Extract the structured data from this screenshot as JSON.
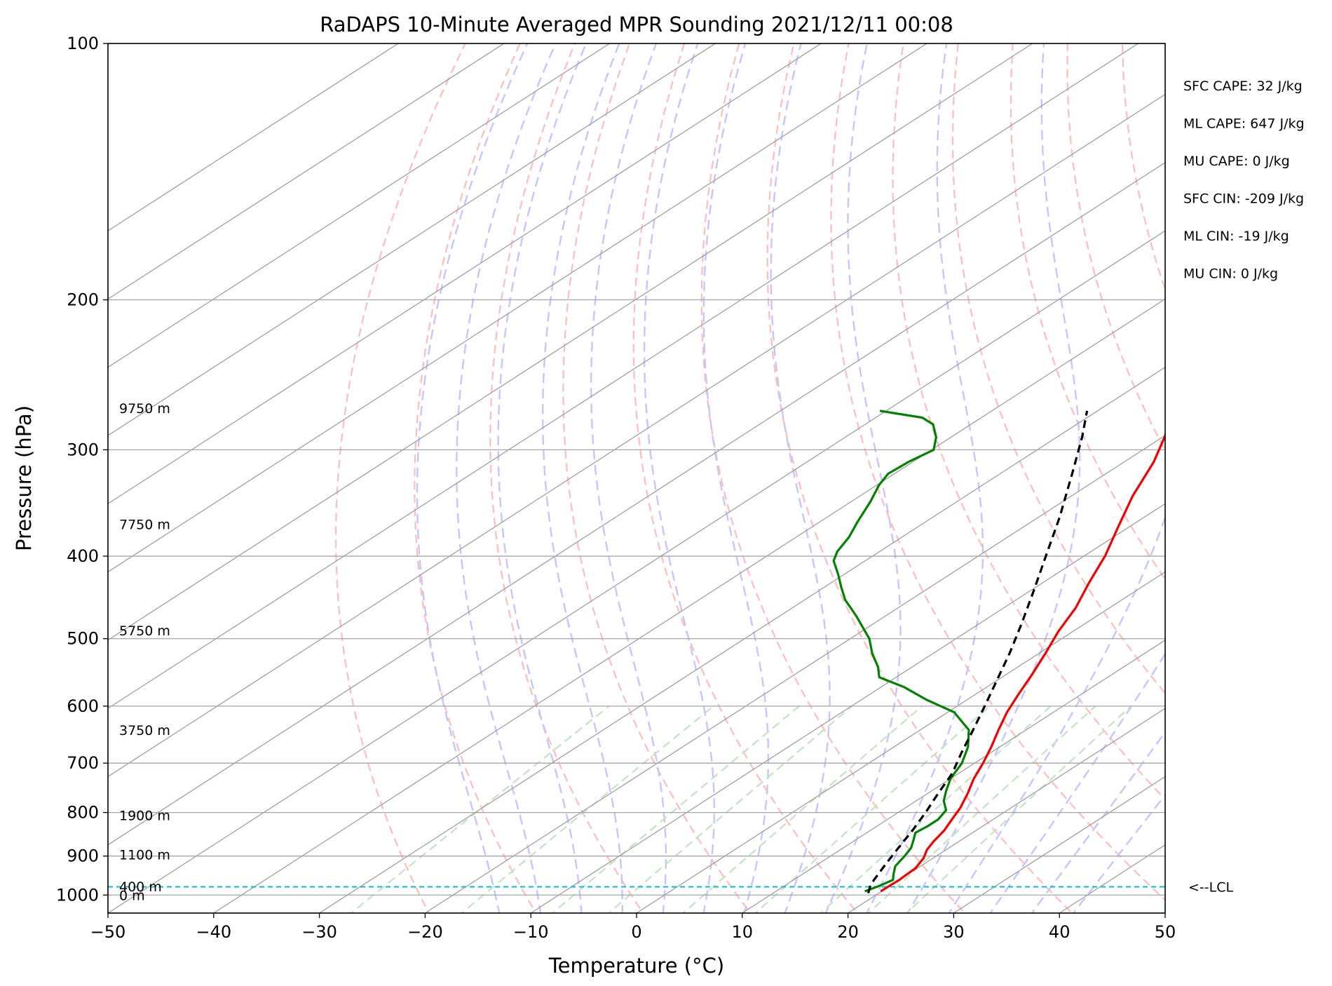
{
  "chart_data": {
    "type": "skew-t",
    "title": "RaDAPS 10-Minute Averaged MPR Sounding 2021/12/11 00:08",
    "xlabel": "Temperature (°C)",
    "ylabel": "Pressure (hPa)",
    "xlim": [
      -50,
      50
    ],
    "ylim": [
      1050,
      100
    ],
    "y_scale": "log",
    "x_ticks": [
      "−50",
      "−40",
      "−30",
      "−20",
      "−10",
      "0",
      "10",
      "20",
      "30",
      "40",
      "50"
    ],
    "y_ticks": [
      "100",
      "200",
      "300",
      "400",
      "500",
      "600",
      "700",
      "800",
      "900",
      "1000"
    ],
    "grid": true,
    "temperature": {
      "color": "#ee0000",
      "points": [
        [
          990,
          19.9
        ],
        [
          960,
          20.0
        ],
        [
          930,
          19.8
        ],
        [
          905,
          19.1
        ],
        [
          885,
          18.2
        ],
        [
          865,
          17.6
        ],
        [
          840,
          17.0
        ],
        [
          815,
          16.1
        ],
        [
          790,
          15.2
        ],
        [
          760,
          13.8
        ],
        [
          730,
          12.2
        ],
        [
          700,
          10.8
        ],
        [
          670,
          9.2
        ],
        [
          640,
          7.4
        ],
        [
          610,
          5.6
        ],
        [
          580,
          4.0
        ],
        [
          550,
          2.4
        ],
        [
          520,
          0.6
        ],
        [
          490,
          -1.4
        ],
        [
          460,
          -3.2
        ],
        [
          430,
          -5.6
        ],
        [
          400,
          -8.0
        ],
        [
          370,
          -11.0
        ],
        [
          340,
          -14.2
        ],
        [
          310,
          -17.2
        ],
        [
          290,
          -19.8
        ],
        [
          270,
          -22.8
        ]
      ]
    },
    "dewpoint": {
      "color": "#008000",
      "points": [
        [
          990,
          18.4
        ],
        [
          975,
          19.0
        ],
        [
          960,
          19.4
        ],
        [
          945,
          18.6
        ],
        [
          925,
          17.6
        ],
        [
          900,
          17.0
        ],
        [
          880,
          16.4
        ],
        [
          860,
          15.4
        ],
        [
          845,
          14.6
        ],
        [
          830,
          14.8
        ],
        [
          815,
          14.8
        ],
        [
          795,
          14.2
        ],
        [
          775,
          12.6
        ],
        [
          755,
          11.4
        ],
        [
          730,
          10.0
        ],
        [
          700,
          8.8
        ],
        [
          670,
          7.0
        ],
        [
          640,
          4.6
        ],
        [
          610,
          0.6
        ],
        [
          590,
          -3.8
        ],
        [
          570,
          -7.8
        ],
        [
          555,
          -11.6
        ],
        [
          540,
          -13.2
        ],
        [
          520,
          -15.8
        ],
        [
          500,
          -18.2
        ],
        [
          470,
          -22.8
        ],
        [
          450,
          -26.2
        ],
        [
          435,
          -28.4
        ],
        [
          420,
          -30.6
        ],
        [
          405,
          -33.0
        ],
        [
          395,
          -34.0
        ],
        [
          380,
          -35.0
        ],
        [
          365,
          -36.4
        ],
        [
          345,
          -38.2
        ],
        [
          330,
          -39.8
        ],
        [
          320,
          -40.6
        ],
        [
          310,
          -40.4
        ],
        [
          300,
          -39.8
        ],
        [
          290,
          -41.4
        ],
        [
          280,
          -43.6
        ],
        [
          275,
          -45.6
        ],
        [
          270,
          -50.6
        ]
      ]
    },
    "parcel": {
      "color": "#000000",
      "points": [
        [
          995,
          19.0
        ],
        [
          975,
          18.1
        ],
        [
          960,
          17.6
        ],
        [
          920,
          16.4
        ],
        [
          880,
          15.2
        ],
        [
          840,
          14.0
        ],
        [
          800,
          12.6
        ],
        [
          760,
          11.0
        ],
        [
          720,
          9.4
        ],
        [
          680,
          7.2
        ],
        [
          640,
          5.0
        ],
        [
          600,
          2.6
        ],
        [
          560,
          0.0
        ],
        [
          520,
          -2.8
        ],
        [
          480,
          -6.0
        ],
        [
          440,
          -9.6
        ],
        [
          400,
          -13.6
        ],
        [
          360,
          -18.0
        ],
        [
          320,
          -23.2
        ],
        [
          290,
          -27.6
        ],
        [
          270,
          -31.0
        ]
      ]
    },
    "lcl_pressure": 978,
    "lcl_label": "<--LCL",
    "height_labels": [
      {
        "p": 268,
        "text": "9750 m"
      },
      {
        "p": 367,
        "text": "7750 m"
      },
      {
        "p": 489,
        "text": "5750 m"
      },
      {
        "p": 640,
        "text": "3750 m"
      },
      {
        "p": 806,
        "text": "1900 m"
      },
      {
        "p": 896,
        "text": "1100 m"
      },
      {
        "p": 977,
        "text": "400 m"
      },
      {
        "p": 1000,
        "text": "0 m"
      }
    ],
    "stats": [
      "SFC CAPE: 32 J/kg",
      "ML CAPE: 647 J/kg",
      "MU CAPE: 0 J/kg",
      "SFC CIN: -209 J/kg",
      "ML CIN: -19 J/kg",
      "MU CIN: 0 J/kg"
    ],
    "background_lines": {
      "isotherm_color": "#a0a0a0",
      "dry_adiabat_color": "#ffbdbd",
      "moist_adiabat_color": "#c6c6ff",
      "mixing_ratio_color": "#c3e3c3"
    }
  }
}
